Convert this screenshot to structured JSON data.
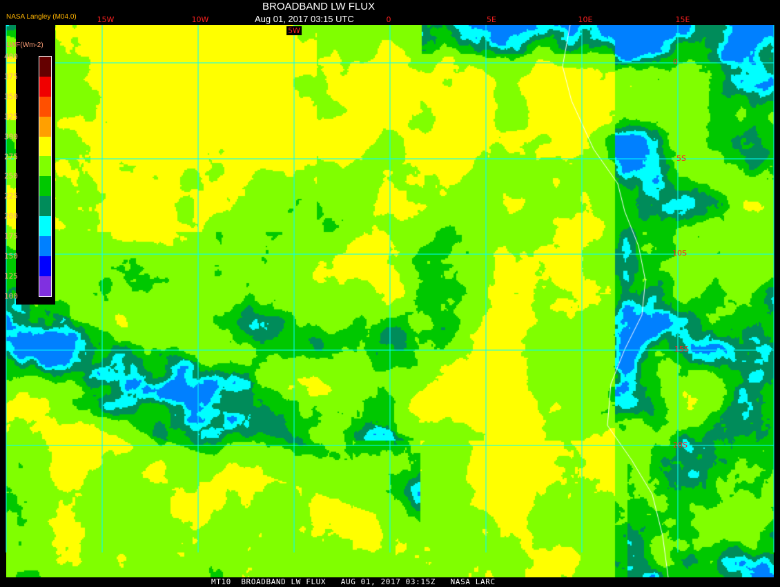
{
  "header": {
    "title": "BROADBAND LW FLUX",
    "datetime": "Aug 01, 2017 03:15 UTC",
    "source": "NASA Langley (M04.0)"
  },
  "longitude_labels": [
    "15W",
    "10W",
    "5W",
    "0",
    "5E",
    "10E",
    "15E"
  ],
  "latitude_labels": [
    "0",
    "5S",
    "10S",
    "15S",
    "20S"
  ],
  "legend": {
    "label_prefix": "LWF",
    "label_unit": "(Wm-2)",
    "ticks": [
      "400",
      "375",
      "350",
      "325",
      "300",
      "275",
      "250",
      "225",
      "200",
      "175",
      "150",
      "125",
      "100"
    ],
    "colors": [
      "#640000",
      "#f00000",
      "#ff5000",
      "#ffa000",
      "#ffff00",
      "#80ff00",
      "#00c800",
      "#008c5a",
      "#00ffff",
      "#0080ff",
      "#0000ff",
      "#8030e0"
    ]
  },
  "footer": "MT10  BROADBAND LW FLUX   AUG 01, 2017 03:15Z   NASA LARC",
  "colors": {
    "grid": "#00ffff",
    "coast": "#ffffff"
  }
}
